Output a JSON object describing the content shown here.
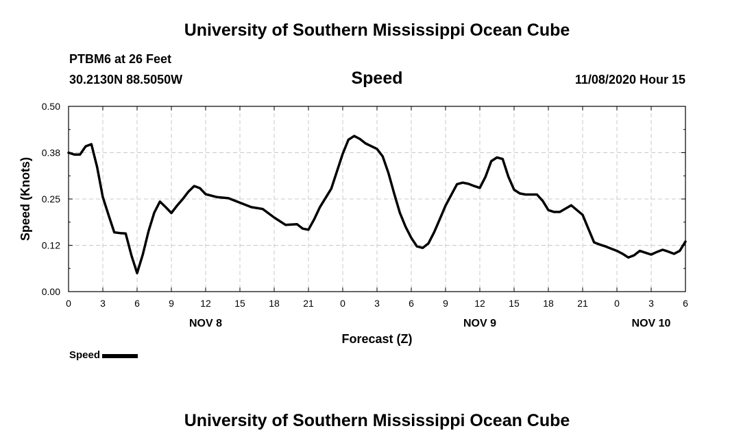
{
  "header": {
    "title": "University of Southern Mississippi Ocean Cube",
    "station": "PTBM6 at 26 Feet",
    "coords": "30.2130N 88.5050W",
    "variable": "Speed",
    "datetime": "11/08/2020 Hour 15"
  },
  "footer": {
    "title": "University of Southern Mississippi Ocean Cube"
  },
  "legend": {
    "label": "Speed"
  },
  "chart_data": {
    "type": "line",
    "title": "Speed",
    "xlabel": "Forecast (Z)",
    "ylabel": "Speed (Knots)",
    "ylim": [
      0,
      0.5
    ],
    "yticks": [
      "0.00",
      "0.12",
      "0.25",
      "0.38",
      "0.50"
    ],
    "xlim": [
      0,
      54
    ],
    "xticks": [
      0,
      3,
      6,
      9,
      12,
      15,
      18,
      21,
      24,
      27,
      30,
      33,
      36,
      39,
      42,
      45,
      48,
      51,
      54
    ],
    "xtick_labels": [
      "0",
      "3",
      "6",
      "9",
      "12",
      "15",
      "18",
      "21",
      "0",
      "3",
      "6",
      "9",
      "12",
      "15",
      "18",
      "21",
      "0",
      "3",
      "6"
    ],
    "date_labels": [
      {
        "x": 12,
        "label": "NOV 8"
      },
      {
        "x": 36,
        "label": "NOV 9"
      },
      {
        "x": 51,
        "label": "NOV 10"
      }
    ],
    "grid": true,
    "legend_position": "bottom-left",
    "series": [
      {
        "name": "Speed",
        "color": "#000000",
        "x": [
          0,
          0.5,
          1,
          1.5,
          2,
          2.5,
          3,
          3.5,
          4,
          4.5,
          5,
          5.5,
          6,
          6.5,
          7,
          7.5,
          8,
          8.5,
          9,
          9.5,
          10,
          10.5,
          11,
          11.5,
          12,
          13,
          14,
          15,
          16,
          17,
          18,
          19,
          20,
          20.5,
          21,
          21.5,
          22,
          23,
          24,
          24.5,
          25,
          25.5,
          26,
          27,
          27.5,
          28,
          28.5,
          29,
          29.5,
          30,
          30.5,
          31,
          31.5,
          32,
          32.5,
          33,
          34,
          34.5,
          35,
          35.5,
          36,
          36.5,
          37,
          37.5,
          38,
          38.5,
          39,
          39.5,
          40,
          41,
          41.5,
          42,
          42.5,
          43,
          44,
          45,
          45.5,
          46,
          46.5,
          47,
          48,
          48.5,
          49,
          49.5,
          50,
          50.5,
          51,
          51.5,
          52,
          52.5,
          53,
          53.5,
          54
        ],
        "y": [
          0.375,
          0.37,
          0.37,
          0.392,
          0.398,
          0.336,
          0.255,
          0.207,
          0.16,
          0.158,
          0.157,
          0.098,
          0.05,
          0.1,
          0.163,
          0.213,
          0.243,
          0.228,
          0.212,
          0.232,
          0.25,
          0.27,
          0.285,
          0.279,
          0.263,
          0.255,
          0.252,
          0.24,
          0.228,
          0.223,
          0.2,
          0.18,
          0.182,
          0.17,
          0.167,
          0.195,
          0.228,
          0.278,
          0.372,
          0.41,
          0.42,
          0.412,
          0.4,
          0.385,
          0.365,
          0.32,
          0.265,
          0.213,
          0.175,
          0.145,
          0.122,
          0.118,
          0.13,
          0.16,
          0.196,
          0.232,
          0.29,
          0.294,
          0.291,
          0.285,
          0.28,
          0.31,
          0.352,
          0.362,
          0.358,
          0.31,
          0.275,
          0.265,
          0.262,
          0.262,
          0.245,
          0.22,
          0.215,
          0.215,
          0.233,
          0.207,
          0.17,
          0.133,
          0.127,
          0.122,
          0.11,
          0.102,
          0.092,
          0.098,
          0.11,
          0.105,
          0.1,
          0.107,
          0.113,
          0.108,
          0.102,
          0.11,
          0.135
        ]
      }
    ]
  }
}
